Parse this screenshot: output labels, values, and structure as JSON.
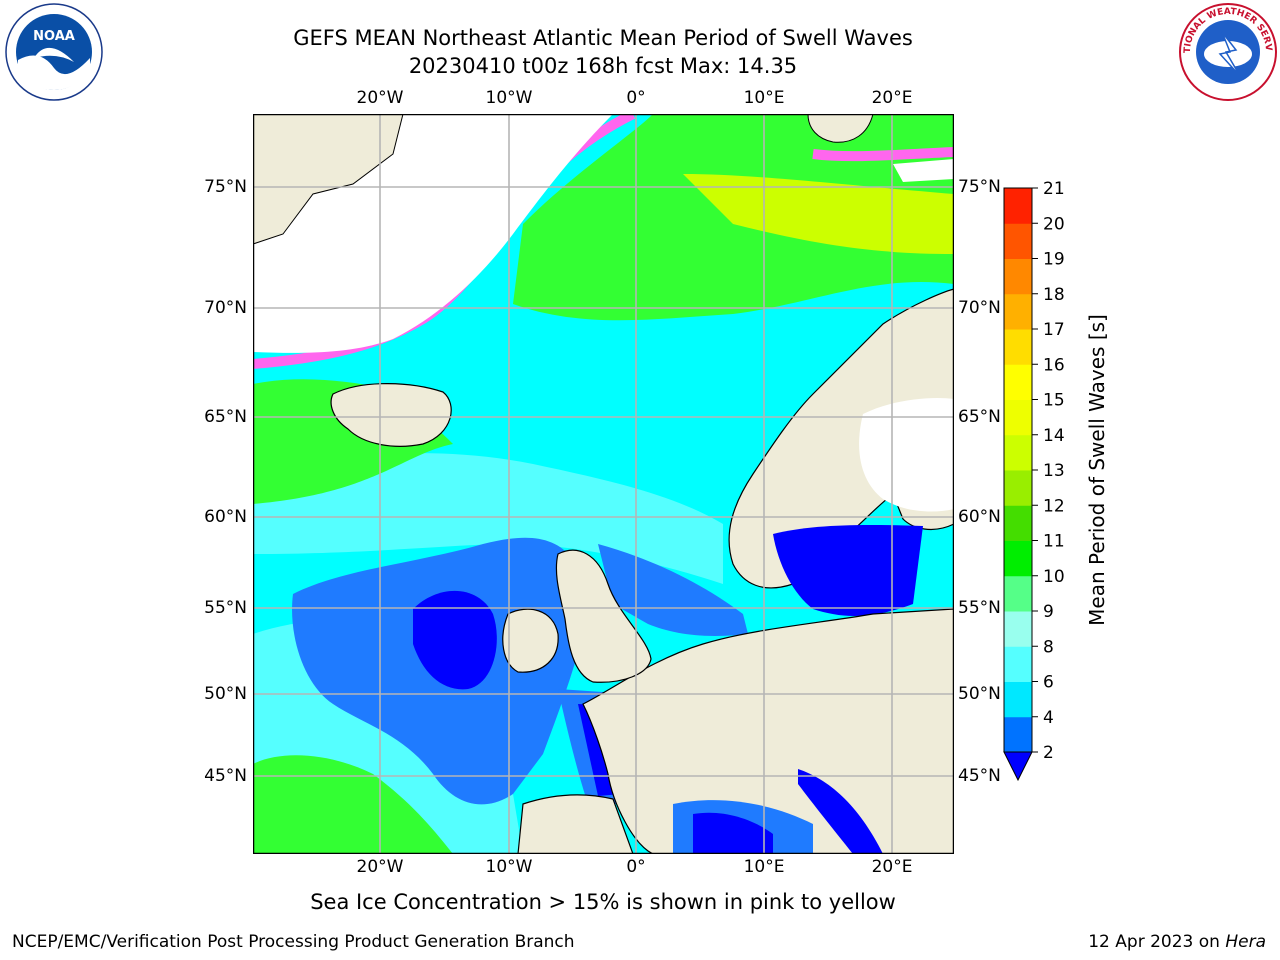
{
  "title": {
    "line1": "GEFS MEAN Northeast Atlantic Mean Period of Swell Waves",
    "line2": "20230410 t00z 168h fcst   Max: 14.35"
  },
  "logos": {
    "left": "noaa-logo",
    "right": "national-weather-service-logo",
    "left_text": "NOAA",
    "right_text": "NATIONAL WEATHER SERVICE"
  },
  "map": {
    "lon_labels": [
      "20°W",
      "10°W",
      "0°",
      "10°E",
      "20°E"
    ],
    "lat_labels": [
      "75°N",
      "70°N",
      "65°N",
      "60°N",
      "55°N",
      "50°N",
      "45°N"
    ],
    "colors": {
      "ocean_cyan": "#00ffff",
      "ocean_lightcyan": "#55ffff",
      "ocean_blue": "#1f7bff",
      "ocean_darkblue": "#0000ff",
      "ocean_green": "#33ff33",
      "ocean_yellowgreen": "#ccff00",
      "land": "#efecd9",
      "ice": "#ff66ee",
      "grid": "#b5b5b5"
    }
  },
  "colorbar": {
    "label": "Mean Period of Swell Waves [s]",
    "ticks": [
      "2",
      "4",
      "6",
      "8",
      "9",
      "10",
      "11",
      "12",
      "13",
      "14",
      "15",
      "16",
      "17",
      "18",
      "19",
      "20",
      "21"
    ],
    "colors": [
      "#0073ff",
      "#00e8ff",
      "#55ffff",
      "#99ffee",
      "#55ff88",
      "#00ee00",
      "#44dd00",
      "#99ee00",
      "#ccff00",
      "#eeff00",
      "#ffff00",
      "#ffdd00",
      "#ffb000",
      "#ff8800",
      "#ff5500",
      "#ff2200"
    ],
    "under_color": "#0000ff"
  },
  "footnote": "Sea Ice Concentration > 15% is shown in pink to yellow",
  "credit": "NCEP/EMC/Verification Post Processing Product Generation Branch",
  "stamp": {
    "date": "12 Apr 2023 on ",
    "machine": "Hera"
  }
}
